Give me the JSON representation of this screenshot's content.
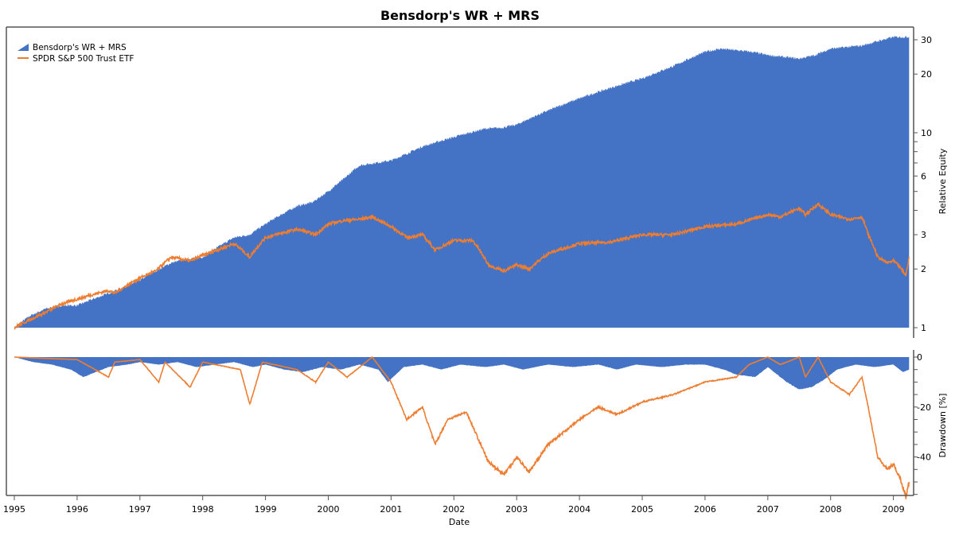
{
  "chart_data": [
    {
      "type": "area",
      "title": "Bensdorp's WR + MRS",
      "ylabel": "Relative Equity",
      "yscale": "log",
      "ylim": [
        1,
        32
      ],
      "yticks": [
        1,
        2,
        3,
        6,
        10,
        20,
        30
      ],
      "legend": "top-left",
      "series": [
        {
          "name": "Bensdorp's WR + MRS",
          "kind": "area",
          "color": "#4472C4",
          "x": [
            1995,
            1995.25,
            1995.5,
            1995.75,
            1996,
            1996.25,
            1996.5,
            1996.75,
            1997,
            1997.25,
            1997.5,
            1997.75,
            1998,
            1998.25,
            1998.5,
            1998.75,
            1999,
            1999.25,
            1999.5,
            1999.75,
            2000,
            2000.25,
            2000.5,
            2000.75,
            2001,
            2001.25,
            2001.5,
            2001.75,
            2002,
            2002.25,
            2002.5,
            2002.75,
            2003,
            2003.25,
            2003.5,
            2003.75,
            2004,
            2004.25,
            2004.5,
            2004.75,
            2005,
            2005.25,
            2005.5,
            2005.75,
            2006,
            2006.25,
            2006.5,
            2006.75,
            2007,
            2007.25,
            2007.5,
            2007.75,
            2008,
            2008.25,
            2008.5,
            2008.75,
            2009,
            2009.25
          ],
          "y": [
            1,
            1.15,
            1.25,
            1.3,
            1.3,
            1.4,
            1.5,
            1.62,
            1.75,
            1.95,
            2.15,
            2.25,
            2.3,
            2.6,
            2.9,
            3.0,
            3.4,
            3.8,
            4.2,
            4.4,
            5.0,
            5.8,
            6.8,
            7.0,
            7.2,
            7.8,
            8.5,
            9.0,
            9.5,
            10.0,
            10.5,
            10.6,
            11,
            12,
            13,
            14,
            15,
            16,
            17,
            18,
            19,
            20.5,
            22,
            24,
            26,
            27,
            26.5,
            26,
            25,
            24.5,
            24,
            25,
            27,
            27.5,
            28,
            29.5,
            31,
            31
          ]
        },
        {
          "name": "SPDR S&P 500 Trust ETF",
          "kind": "line",
          "color": "#ED7D31",
          "x": [
            1995,
            1995.25,
            1995.5,
            1995.75,
            1996,
            1996.25,
            1996.5,
            1996.6,
            1997,
            1997.25,
            1997.5,
            1997.8,
            1998,
            1998.3,
            1998.5,
            1998.75,
            1999,
            1999.25,
            1999.5,
            1999.8,
            2000,
            2000.25,
            2000.5,
            2000.7,
            2001,
            2001.25,
            2001.5,
            2001.7,
            2002,
            2002.3,
            2002.55,
            2002.8,
            2003,
            2003.2,
            2003.5,
            2003.75,
            2004,
            2004.5,
            2005,
            2005.5,
            2006,
            2006.5,
            2007,
            2007.2,
            2007.5,
            2007.6,
            2007.8,
            2008,
            2008.3,
            2008.5,
            2008.6,
            2008.75,
            2008.9,
            2009,
            2009.1,
            2009.2,
            2009.25
          ],
          "y": [
            1,
            1.1,
            1.2,
            1.32,
            1.4,
            1.48,
            1.55,
            1.5,
            1.8,
            1.95,
            2.3,
            2.2,
            2.35,
            2.55,
            2.7,
            2.3,
            2.9,
            3.05,
            3.2,
            3.0,
            3.4,
            3.55,
            3.6,
            3.7,
            3.3,
            2.9,
            3.0,
            2.5,
            2.8,
            2.8,
            2.1,
            1.95,
            2.1,
            2.0,
            2.4,
            2.55,
            2.7,
            2.75,
            3.0,
            3.0,
            3.3,
            3.4,
            3.8,
            3.7,
            4.1,
            3.8,
            4.3,
            3.8,
            3.6,
            3.7,
            3.0,
            2.3,
            2.15,
            2.2,
            2.05,
            1.85,
            2.3
          ]
        }
      ]
    },
    {
      "type": "area",
      "ylabel": "Drawdown [%]",
      "xlabel": "Date",
      "ylim": [
        -55,
        0
      ],
      "yticks": [
        0,
        -20,
        -40
      ],
      "xticks": [
        "1995",
        "1996",
        "1997",
        "1998",
        "1999",
        "2000",
        "2001",
        "2002",
        "2003",
        "2004",
        "2005",
        "2006",
        "2007",
        "2008",
        "2009"
      ],
      "series": [
        {
          "name": "Bensdorp's WR + MRS",
          "kind": "area",
          "color": "#4472C4",
          "x": [
            1995,
            1995.3,
            1995.6,
            1995.9,
            1996.1,
            1996.3,
            1996.5,
            1996.8,
            1997,
            1997.3,
            1997.6,
            1997.9,
            1998.2,
            1998.5,
            1998.8,
            1999,
            1999.3,
            1999.6,
            1999.9,
            2000.2,
            2000.5,
            2000.8,
            2000.95,
            2001.2,
            2001.5,
            2001.8,
            2002.1,
            2002.5,
            2002.8,
            2003.1,
            2003.5,
            2003.9,
            2004.3,
            2004.6,
            2004.9,
            2005.3,
            2005.7,
            2006,
            2006.3,
            2006.5,
            2006.8,
            2007,
            2007.3,
            2007.5,
            2007.7,
            2007.9,
            2008.1,
            2008.4,
            2008.7,
            2009,
            2009.15,
            2009.25
          ],
          "y": [
            0,
            -2,
            -3,
            -5,
            -8,
            -6,
            -4,
            -3,
            -2,
            -3,
            -2,
            -4,
            -3,
            -2,
            -4,
            -3,
            -5,
            -6,
            -4,
            -5,
            -3,
            -5,
            -10,
            -4,
            -3,
            -5,
            -3,
            -4,
            -3,
            -5,
            -3,
            -4,
            -3,
            -5,
            -3,
            -4,
            -3,
            -3,
            -5,
            -7,
            -8,
            -4,
            -10,
            -13,
            -12,
            -9,
            -5,
            -3,
            -4,
            -3,
            -6,
            -5
          ]
        },
        {
          "name": "SPDR S&P 500 Trust ETF",
          "kind": "line",
          "color": "#ED7D31",
          "x": [
            1995,
            1996,
            1996.5,
            1996.6,
            1997,
            1997.3,
            1997.4,
            1997.8,
            1998,
            1998.6,
            1998.75,
            1998.95,
            1999.5,
            1999.8,
            2000,
            2000.3,
            2000.7,
            2001,
            2001.25,
            2001.5,
            2001.7,
            2001.9,
            2002.2,
            2002.55,
            2002.8,
            2003,
            2003.2,
            2003.5,
            2004,
            2004.3,
            2004.6,
            2005,
            2005.5,
            2006,
            2006.5,
            2006.7,
            2007,
            2007.2,
            2007.5,
            2007.6,
            2007.8,
            2008,
            2008.3,
            2008.5,
            2008.6,
            2008.75,
            2008.9,
            2009,
            2009.1,
            2009.2,
            2009.25
          ],
          "y": [
            0,
            -1,
            -8,
            -2,
            -1,
            -10,
            -2,
            -12,
            -2,
            -5,
            -19,
            -2,
            -5,
            -10,
            -2,
            -8,
            0,
            -10,
            -25,
            -20,
            -35,
            -25,
            -22,
            -42,
            -47,
            -40,
            -46,
            -35,
            -25,
            -20,
            -23,
            -18,
            -15,
            -10,
            -8,
            -3,
            0,
            -3,
            0,
            -8,
            0,
            -10,
            -15,
            -8,
            -20,
            -40,
            -45,
            -43,
            -48,
            -56,
            -50
          ]
        }
      ]
    }
  ]
}
